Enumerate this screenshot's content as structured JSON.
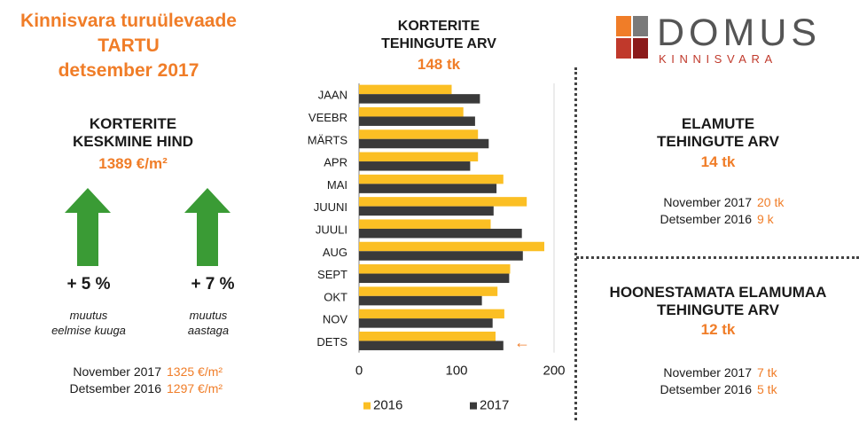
{
  "header": {
    "title_line1": "Kinnisvara turuülevaade",
    "title_line2": "TARTU",
    "title_line3": "detsember 2017"
  },
  "logo": {
    "brand": "DOMUS",
    "sub": "KINNISVARA",
    "colors": [
      "#f07d28",
      "#7a7a7a",
      "#c0392b",
      "#8b1a1a"
    ]
  },
  "avg_price": {
    "heading_line1": "KORTERITE",
    "heading_line2": "KESKMINE HIND",
    "value": "1389 €/m²",
    "change_month": "+ 5 %",
    "change_month_note_line1": "muutus",
    "change_month_note_line2": "eelmise kuuga",
    "change_year": "+ 7 %",
    "change_year_note_line1": "muutus",
    "change_year_note_line2": "aastaga",
    "arrow_icon": "arrow-up-icon",
    "arrow_color": "#3a9b35",
    "compare": [
      {
        "label": "November  2017",
        "value": "1325 €/m²"
      },
      {
        "label": "Detsember 2016",
        "value": "1297 €/m²"
      }
    ]
  },
  "apartments": {
    "heading_line1": "KORTERITE",
    "heading_line2": "TEHINGUTE ARV",
    "value": "148 tk"
  },
  "houses": {
    "heading_line1": "ELAMUTE",
    "heading_line2": "TEHINGUTE ARV",
    "value": "14 tk",
    "compare": [
      {
        "label": "November  2017",
        "value": "20 tk"
      },
      {
        "label": "Detsember 2016",
        "value": "9 k"
      }
    ]
  },
  "land": {
    "heading_line1": "HOONESTAMATA ELAMUMAA",
    "heading_line2": "TEHINGUTE ARV",
    "value": "12 tk",
    "compare": [
      {
        "label": "November  2017",
        "value": "7 tk"
      },
      {
        "label": "Detsember 2016",
        "value": "5 tk"
      }
    ]
  },
  "chart_data": {
    "type": "bar",
    "orientation": "horizontal",
    "categories": [
      "JAAN",
      "VEEBR",
      "MÄRTS",
      "APR",
      "MAI",
      "JUUNI",
      "JUULI",
      "AUG",
      "SEPT",
      "OKT",
      "NOV",
      "DETS"
    ],
    "series": [
      {
        "name": "2016",
        "color": "#fbbf24",
        "values": [
          95,
          107,
          122,
          122,
          148,
          172,
          135,
          190,
          155,
          142,
          149,
          140
        ]
      },
      {
        "name": "2017",
        "color": "#3a3a3a",
        "values": [
          124,
          119,
          133,
          114,
          141,
          138,
          167,
          168,
          154,
          126,
          137,
          148
        ]
      }
    ],
    "xlim": [
      0,
      200
    ],
    "xticks": [
      "0",
      "100",
      "200"
    ],
    "legend_position": "bottom",
    "annotation": "←"
  }
}
